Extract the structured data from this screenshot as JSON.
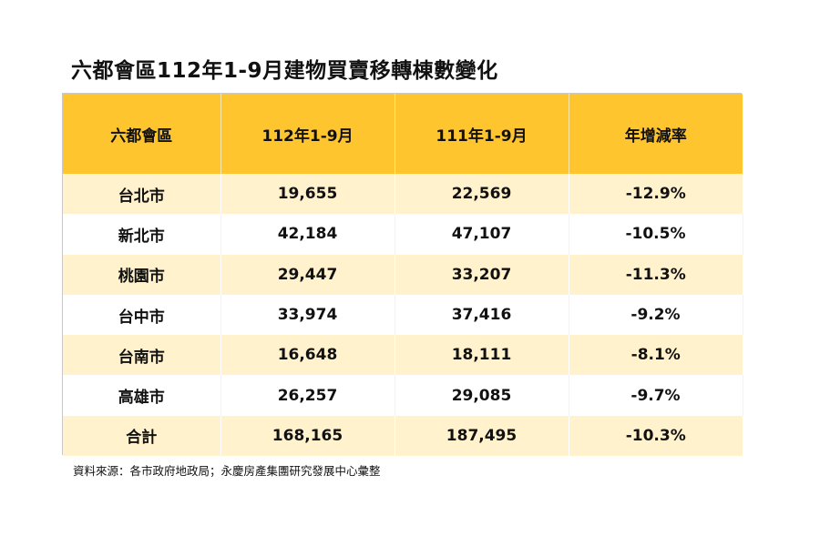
{
  "title": "六都會區112年1-9月建物買賣移轉棟數變化",
  "table": {
    "headers": [
      "六都會區",
      "112年1-9月",
      "111年1-9月",
      "年增減率"
    ],
    "rows": [
      {
        "city": "台北市",
        "y112": "19,655",
        "y111": "22,569",
        "rate": "-12.9%"
      },
      {
        "city": "新北市",
        "y112": "42,184",
        "y111": "47,107",
        "rate": "-10.5%"
      },
      {
        "city": "桃園市",
        "y112": "29,447",
        "y111": "33,207",
        "rate": "-11.3%"
      },
      {
        "city": "台中市",
        "y112": "33,974",
        "y111": "37,416",
        "rate": "-9.2%"
      },
      {
        "city": "台南市",
        "y112": "16,648",
        "y111": "18,111",
        "rate": "-8.1%"
      },
      {
        "city": "高雄市",
        "y112": "26,257",
        "y111": "29,085",
        "rate": "-9.7%"
      },
      {
        "city": "合計",
        "y112": "168,165",
        "y111": "187,495",
        "rate": "-10.3%"
      }
    ]
  },
  "source": "資料來源：各市政府地政局；永慶房產集團研究發展中心彙整",
  "colors": {
    "header_bg": "#ffc52e",
    "stripe_bg": "#fff2cc"
  }
}
